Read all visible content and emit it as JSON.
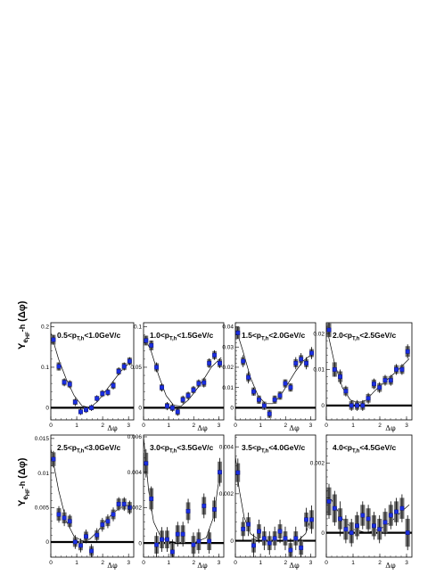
{
  "figure": {
    "ylabel_main": "Y",
    "ylabel_sub": "e",
    "ylabel_subsub": "HF",
    "ylabel_suffix": "-h",
    "ylabel_var": "(Δφ)"
  },
  "chart_data": [
    {
      "type": "scatter",
      "pt_range": {
        "low": "0.5",
        "high": "1.0",
        "unit": "GeV/c"
      },
      "xlabel": "Δφ",
      "xlim": [
        0,
        3.2
      ],
      "ylim": [
        -0.03,
        0.21
      ],
      "yticks": [
        0,
        0.1,
        0.2
      ],
      "ytick_labels": [
        "0",
        "0.1",
        "0.2"
      ],
      "xticks": [
        0,
        1,
        2,
        3
      ],
      "xtick_labels": [
        "0",
        "1",
        "2",
        "3"
      ],
      "x": [
        0.1,
        0.31,
        0.52,
        0.73,
        0.94,
        1.15,
        1.36,
        1.57,
        1.78,
        1.99,
        2.2,
        2.41,
        2.62,
        2.83,
        3.04
      ],
      "y": [
        0.168,
        0.102,
        0.063,
        0.058,
        0.014,
        -0.01,
        -0.005,
        0.0,
        0.023,
        0.035,
        0.038,
        0.055,
        0.09,
        0.102,
        0.115
      ],
      "stat_err": [
        0.012,
        0.01,
        0.01,
        0.01,
        0.01,
        0.008,
        0.008,
        0.008,
        0.008,
        0.009,
        0.009,
        0.01,
        0.01,
        0.01,
        0.01
      ],
      "sys_err": [
        0.012,
        0.01,
        0.008,
        0.008,
        0.007,
        0.006,
        0.006,
        0.006,
        0.006,
        0.007,
        0.007,
        0.008,
        0.008,
        0.009,
        0.009
      ],
      "fit": [
        [
          0.0,
          0.185
        ],
        [
          0.3,
          0.12
        ],
        [
          0.6,
          0.07
        ],
        [
          0.9,
          0.03
        ],
        [
          1.2,
          0.005
        ],
        [
          1.5,
          0.0
        ],
        [
          1.8,
          0.015
        ],
        [
          2.1,
          0.04
        ],
        [
          2.4,
          0.065
        ],
        [
          2.7,
          0.09
        ],
        [
          3.1,
          0.115
        ]
      ]
    },
    {
      "type": "scatter",
      "pt_range": {
        "low": "1.0",
        "high": "1.5",
        "unit": "GeV/c"
      },
      "xlabel": "Δφ",
      "xlim": [
        0,
        3.2
      ],
      "ylim": [
        -0.015,
        0.105
      ],
      "yticks": [
        0,
        0.05,
        0.1
      ],
      "ytick_labels": [
        "0",
        "0.05",
        "0.1"
      ],
      "xticks": [
        0,
        1,
        2,
        3
      ],
      "xtick_labels": [
        "0",
        "1",
        "2",
        "3"
      ],
      "x": [
        0.1,
        0.31,
        0.52,
        0.73,
        0.94,
        1.15,
        1.36,
        1.57,
        1.78,
        1.99,
        2.2,
        2.41,
        2.62,
        2.83,
        3.04
      ],
      "y": [
        0.083,
        0.077,
        0.05,
        0.025,
        0.002,
        0.0,
        -0.005,
        0.01,
        0.015,
        0.022,
        0.03,
        0.031,
        0.055,
        0.065,
        0.055
      ],
      "stat_err": [
        0.006,
        0.006,
        0.006,
        0.005,
        0.005,
        0.005,
        0.005,
        0.005,
        0.005,
        0.005,
        0.005,
        0.006,
        0.006,
        0.006,
        0.006
      ],
      "sys_err": [
        0.006,
        0.006,
        0.005,
        0.004,
        0.004,
        0.004,
        0.004,
        0.004,
        0.004,
        0.004,
        0.004,
        0.005,
        0.005,
        0.005,
        0.005
      ],
      "fit": [
        [
          0.0,
          0.09
        ],
        [
          0.3,
          0.07
        ],
        [
          0.6,
          0.04
        ],
        [
          0.9,
          0.015
        ],
        [
          1.2,
          0.003
        ],
        [
          1.5,
          0.002
        ],
        [
          1.8,
          0.01
        ],
        [
          2.1,
          0.022
        ],
        [
          2.4,
          0.035
        ],
        [
          2.7,
          0.05
        ],
        [
          3.1,
          0.062
        ]
      ]
    },
    {
      "type": "scatter",
      "pt_range": {
        "low": "1.5",
        "high": "2.0",
        "unit": "GeV/c"
      },
      "xlabel": "Δφ",
      "xlim": [
        0,
        3.2
      ],
      "ylim": [
        -0.006,
        0.042
      ],
      "yticks": [
        0,
        0.01,
        0.02,
        0.03,
        0.04
      ],
      "ytick_labels": [
        "0",
        "0.01",
        "0.02",
        "0.03",
        "0.04"
      ],
      "xticks": [
        0,
        1,
        2,
        3
      ],
      "xtick_labels": [
        "0",
        "1",
        "2",
        "3"
      ],
      "x": [
        0.1,
        0.31,
        0.52,
        0.73,
        0.94,
        1.15,
        1.36,
        1.57,
        1.78,
        1.99,
        2.2,
        2.41,
        2.62,
        2.83,
        3.04
      ],
      "y": [
        0.037,
        0.023,
        0.015,
        0.008,
        0.004,
        0.001,
        -0.003,
        0.004,
        0.006,
        0.012,
        0.01,
        0.022,
        0.024,
        0.022,
        0.027
      ],
      "stat_err": [
        0.003,
        0.003,
        0.003,
        0.002,
        0.002,
        0.002,
        0.002,
        0.002,
        0.002,
        0.002,
        0.002,
        0.003,
        0.003,
        0.003,
        0.003
      ],
      "sys_err": [
        0.003,
        0.002,
        0.002,
        0.002,
        0.002,
        0.002,
        0.002,
        0.002,
        0.002,
        0.002,
        0.002,
        0.002,
        0.002,
        0.002,
        0.002
      ],
      "fit": [
        [
          0.0,
          0.04
        ],
        [
          0.3,
          0.028
        ],
        [
          0.6,
          0.015
        ],
        [
          0.9,
          0.006
        ],
        [
          1.2,
          0.002
        ],
        [
          1.5,
          0.002
        ],
        [
          1.8,
          0.006
        ],
        [
          2.1,
          0.012
        ],
        [
          2.4,
          0.018
        ],
        [
          2.7,
          0.023
        ],
        [
          3.1,
          0.027
        ]
      ]
    },
    {
      "type": "scatter",
      "pt_range": {
        "low": "2.0",
        "high": "2.5",
        "unit": "GeV/c"
      },
      "xlabel": "Δφ",
      "xlim": [
        0,
        3.2
      ],
      "ylim": [
        -0.004,
        0.023
      ],
      "yticks": [
        0,
        0.01,
        0.02
      ],
      "ytick_labels": [
        "0",
        "0.01",
        "0.02"
      ],
      "xticks": [
        0,
        1,
        2,
        3
      ],
      "xtick_labels": [
        "0",
        "1",
        "2",
        "3"
      ],
      "x": [
        0.1,
        0.31,
        0.52,
        0.73,
        0.94,
        1.15,
        1.36,
        1.57,
        1.78,
        1.99,
        2.2,
        2.41,
        2.62,
        2.83,
        3.04
      ],
      "y": [
        0.021,
        0.01,
        0.008,
        0.004,
        0.0,
        0.0,
        0.0,
        0.002,
        0.006,
        0.005,
        0.007,
        0.007,
        0.01,
        0.01,
        0.015
      ],
      "stat_err": [
        0.002,
        0.002,
        0.002,
        0.0015,
        0.0015,
        0.0015,
        0.0015,
        0.0015,
        0.0015,
        0.0015,
        0.0015,
        0.0015,
        0.0015,
        0.0015,
        0.002
      ],
      "sys_err": [
        0.002,
        0.002,
        0.0015,
        0.0012,
        0.0012,
        0.0012,
        0.0012,
        0.0012,
        0.0012,
        0.0012,
        0.0012,
        0.0012,
        0.0012,
        0.0012,
        0.0015
      ],
      "fit": [
        [
          0.0,
          0.022
        ],
        [
          0.3,
          0.012
        ],
        [
          0.6,
          0.005
        ],
        [
          0.9,
          0.0015
        ],
        [
          1.2,
          0.0008
        ],
        [
          1.5,
          0.0015
        ],
        [
          1.8,
          0.004
        ],
        [
          2.1,
          0.006
        ],
        [
          2.4,
          0.008
        ],
        [
          2.7,
          0.01
        ],
        [
          3.1,
          0.013
        ]
      ]
    },
    {
      "type": "scatter",
      "pt_range": {
        "low": "2.5",
        "high": "3.0",
        "unit": "GeV/c"
      },
      "xlabel": "Δφ",
      "xlim": [
        0,
        3.2
      ],
      "ylim": [
        -0.0022,
        0.0155
      ],
      "yticks": [
        0,
        0.005,
        0.01,
        0.015
      ],
      "ytick_labels": [
        "0",
        "0.005",
        "0.01",
        "0.015"
      ],
      "xticks": [
        0,
        1,
        2,
        3
      ],
      "xtick_labels": [
        "0",
        "1",
        "2",
        "3"
      ],
      "x": [
        0.1,
        0.31,
        0.52,
        0.73,
        0.94,
        1.15,
        1.36,
        1.57,
        1.78,
        1.99,
        2.2,
        2.41,
        2.62,
        2.83,
        3.04
      ],
      "y": [
        0.012,
        0.004,
        0.0035,
        0.003,
        0.0,
        -0.0005,
        0.0008,
        -0.0013,
        0.001,
        0.0025,
        0.003,
        0.004,
        0.0055,
        0.0055,
        0.005
      ],
      "stat_err": [
        0.0012,
        0.0012,
        0.0012,
        0.001,
        0.001,
        0.001,
        0.001,
        0.001,
        0.001,
        0.001,
        0.001,
        0.001,
        0.001,
        0.001,
        0.001
      ],
      "sys_err": [
        0.001,
        0.0009,
        0.0008,
        0.0008,
        0.0007,
        0.0007,
        0.0007,
        0.0007,
        0.0007,
        0.0007,
        0.0007,
        0.0007,
        0.0008,
        0.0008,
        0.0008
      ],
      "fit": [
        [
          0.0,
          0.0135
        ],
        [
          0.3,
          0.0075
        ],
        [
          0.6,
          0.003
        ],
        [
          0.9,
          0.0008
        ],
        [
          1.2,
          0.0002
        ],
        [
          1.5,
          0.0004
        ],
        [
          1.8,
          0.0015
        ],
        [
          2.1,
          0.003
        ],
        [
          2.4,
          0.0042
        ],
        [
          2.7,
          0.005
        ],
        [
          3.1,
          0.0055
        ]
      ]
    },
    {
      "type": "scatter",
      "pt_range": {
        "low": "3.0",
        "high": "3.5",
        "unit": "GeV/c"
      },
      "xlabel": "Δφ",
      "xlim": [
        0,
        3.2
      ],
      "ylim": [
        -0.0008,
        0.0061
      ],
      "yticks": [
        0,
        0.002,
        0.004,
        0.006
      ],
      "ytick_labels": [
        "0",
        "0.002",
        "0.004",
        "0.006"
      ],
      "xticks": [
        0,
        1,
        2,
        3
      ],
      "xtick_labels": [
        "0",
        "1",
        "2",
        "3"
      ],
      "x": [
        0.1,
        0.31,
        0.52,
        0.73,
        0.94,
        1.15,
        1.36,
        1.57,
        1.78,
        1.99,
        2.2,
        2.41,
        2.62,
        2.83,
        3.04
      ],
      "y": [
        0.0045,
        0.0025,
        -0.0001,
        0.0002,
        0.0002,
        -0.0005,
        0.0005,
        0.0005,
        0.0018,
        -0.0001,
        0.0001,
        0.0021,
        0.0001,
        0.0019,
        0.004
      ],
      "stat_err": [
        0.0008,
        0.0007,
        0.0007,
        0.0007,
        0.0007,
        0.0007,
        0.0007,
        0.0007,
        0.0007,
        0.0007,
        0.0007,
        0.0007,
        0.0007,
        0.0007,
        0.0008
      ],
      "sys_err": [
        0.0006,
        0.0006,
        0.0005,
        0.0005,
        0.0005,
        0.0005,
        0.0005,
        0.0005,
        0.0005,
        0.0005,
        0.0005,
        0.0005,
        0.0005,
        0.0005,
        0.0006
      ],
      "fit": [
        [
          0.0,
          0.006
        ],
        [
          0.2,
          0.003
        ],
        [
          0.4,
          0.0012
        ],
        [
          0.7,
          0.0003
        ],
        [
          1.0,
          0.0001
        ],
        [
          1.5,
          0.0
        ],
        [
          2.0,
          0.0
        ],
        [
          2.5,
          0.0003
        ],
        [
          2.8,
          0.0015
        ],
        [
          3.1,
          0.0045
        ]
      ]
    },
    {
      "type": "scatter",
      "pt_range": {
        "low": "3.5",
        "high": "4.0",
        "unit": "GeV/c"
      },
      "xlabel": "Δφ",
      "xlim": [
        0,
        3.2
      ],
      "ylim": [
        -0.0007,
        0.0045
      ],
      "yticks": [
        0,
        0.002,
        0.004
      ],
      "ytick_labels": [
        "0",
        "0.002",
        "0.004"
      ],
      "xticks": [
        0,
        1,
        2,
        3
      ],
      "xtick_labels": [
        "0",
        "1",
        "2",
        "3"
      ],
      "x": [
        0.1,
        0.31,
        0.52,
        0.73,
        0.94,
        1.15,
        1.36,
        1.57,
        1.78,
        1.99,
        2.2,
        2.41,
        2.62,
        2.83,
        3.04
      ],
      "y": [
        0.0029,
        0.0005,
        0.0007,
        -0.0002,
        0.0004,
        0.0001,
        -0.0001,
        0.0001,
        0.0004,
        0.0001,
        -0.0004,
        0.0001,
        -0.0003,
        0.0009,
        0.0009
      ],
      "stat_err": [
        0.0006,
        0.0005,
        0.0005,
        0.0005,
        0.0005,
        0.0005,
        0.0005,
        0.0005,
        0.0005,
        0.0005,
        0.0005,
        0.0005,
        0.0005,
        0.0005,
        0.0006
      ],
      "sys_err": [
        0.0004,
        0.0003,
        0.0003,
        0.0003,
        0.0003,
        0.0003,
        0.0003,
        0.0003,
        0.0003,
        0.0003,
        0.0003,
        0.0003,
        0.0003,
        0.0003,
        0.0004
      ],
      "fit": [
        [
          0.0,
          0.0036
        ],
        [
          0.15,
          0.0022
        ],
        [
          0.35,
          0.001
        ],
        [
          0.6,
          0.0003
        ],
        [
          1.0,
          0.0
        ],
        [
          1.5,
          0.0
        ],
        [
          2.0,
          0.0
        ],
        [
          2.5,
          0.0
        ],
        [
          2.8,
          0.0003
        ],
        [
          3.1,
          0.0012
        ]
      ]
    },
    {
      "type": "scatter",
      "pt_range": {
        "low": "4.0",
        "high": "4.5",
        "unit": "GeV/c"
      },
      "xlabel": "Δφ",
      "xlim": [
        0,
        3.2
      ],
      "ylim": [
        -0.0007,
        0.0028
      ],
      "yticks": [
        0,
        0.001,
        0.002
      ],
      "ytick_labels": [
        "0",
        "",
        "0.002"
      ],
      "xticks": [
        0,
        1,
        2,
        3
      ],
      "xtick_labels": [
        "0",
        "1",
        "2",
        "3"
      ],
      "x": [
        0.1,
        0.31,
        0.52,
        0.73,
        0.94,
        1.15,
        1.36,
        1.57,
        1.78,
        1.99,
        2.2,
        2.41,
        2.62,
        2.83,
        3.04
      ],
      "y": [
        0.0009,
        0.0007,
        0.0004,
        0.0001,
        0.0,
        0.0002,
        0.0005,
        0.0004,
        0.0002,
        0.0001,
        0.0003,
        0.0005,
        0.0006,
        0.0007,
        0.0
      ],
      "stat_err": [
        0.0005,
        0.0005,
        0.0005,
        0.0004,
        0.0004,
        0.0004,
        0.0004,
        0.0004,
        0.0004,
        0.0004,
        0.0004,
        0.0004,
        0.0004,
        0.0004,
        0.0005
      ],
      "sys_err": [
        0.0004,
        0.0004,
        0.0003,
        0.0003,
        0.0003,
        0.0003,
        0.0003,
        0.0003,
        0.0003,
        0.0003,
        0.0003,
        0.0003,
        0.0003,
        0.0003,
        0.0004
      ],
      "fit": [
        [
          0.0,
          0.0012
        ],
        [
          0.3,
          0.0008
        ],
        [
          0.6,
          0.0004
        ],
        [
          1.0,
          0.0001
        ],
        [
          1.5,
          0.0
        ],
        [
          2.0,
          0.0001
        ],
        [
          2.4,
          0.0003
        ],
        [
          2.8,
          0.0006
        ],
        [
          3.1,
          0.0008
        ]
      ]
    }
  ],
  "colors": {
    "marker": "#1a2fe0",
    "marker_edge": "#0a0a70",
    "sys_box": "#707070",
    "zero_line": "#000000",
    "fit": "#000000"
  }
}
